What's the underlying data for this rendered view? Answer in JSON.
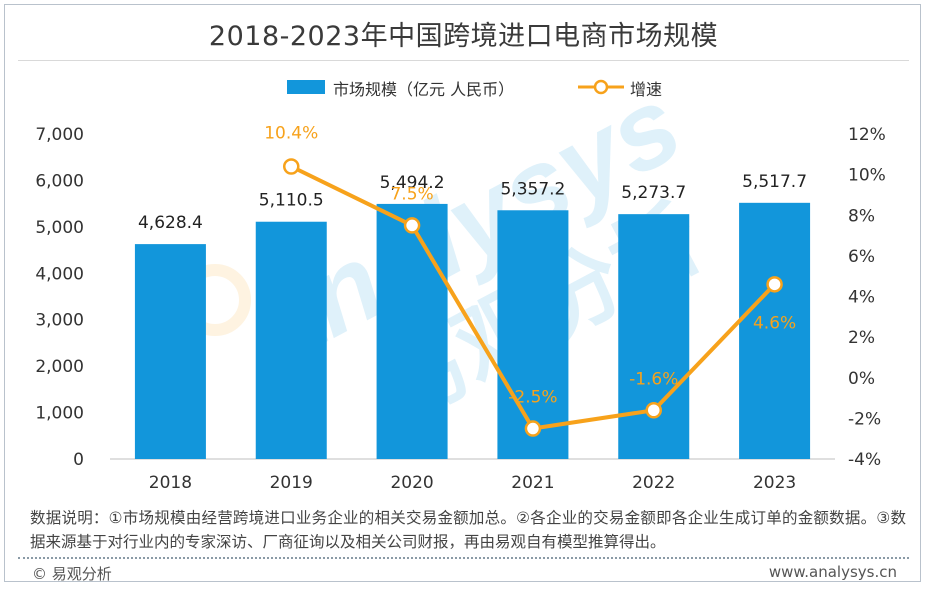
{
  "title": "2018-2023年中国跨境进口电商市场规模",
  "legend": {
    "bar_label": "市场规模（亿元 人民币）",
    "line_label": "增速"
  },
  "colors": {
    "bar": "#1296db",
    "line": "#f7a21b",
    "axis_text": "#333333"
  },
  "chart_data": {
    "type": "bar",
    "categories": [
      "2018",
      "2019",
      "2020",
      "2021",
      "2022",
      "2023"
    ],
    "series": [
      {
        "name": "市场规模（亿元 人民币）",
        "type": "bar",
        "axis": "left",
        "values": [
          4628.4,
          5110.5,
          5494.2,
          5357.2,
          5273.7,
          5517.7
        ],
        "labels": [
          "4,628.4",
          "5,110.5",
          "5,494.2",
          "5,357.2",
          "5,273.7",
          "5,517.7"
        ]
      },
      {
        "name": "增速",
        "type": "line",
        "axis": "right",
        "values": [
          10.4,
          7.5,
          -2.5,
          -1.6,
          4.6
        ],
        "x": [
          "2019",
          "2020",
          "2021",
          "2022",
          "2023"
        ],
        "labels": [
          "10.4%",
          "7.5%",
          "-2.5%",
          "-1.6%",
          "4.6%"
        ]
      }
    ],
    "y_left": {
      "range": [
        0,
        7000
      ],
      "ticks": [
        "7,000",
        "6,000",
        "5,000",
        "4,000",
        "3,000",
        "2,000",
        "1,000",
        "0"
      ]
    },
    "y_right": {
      "range": [
        -4,
        12
      ],
      "ticks": [
        "12%",
        "10%",
        "8%",
        "6%",
        "4%",
        "2%",
        "0%",
        "-2%",
        "-4%"
      ]
    },
    "grid": false,
    "legend_position": "top-center"
  },
  "note": "数据说明：①市场规模由经营跨境进口业务企业的相关交易金额加总。②各企业的交易金额即各企业生成订单的金额数据。③数据来源基于对行业内的专家深访、厂商征询以及相关公司财报，再由易观自有模型推算得出。",
  "footer": {
    "brand": "© 易观分析",
    "url": "www.analysys.cn"
  },
  "watermark": {
    "latin": "analysys",
    "chinese": "易观分析"
  }
}
